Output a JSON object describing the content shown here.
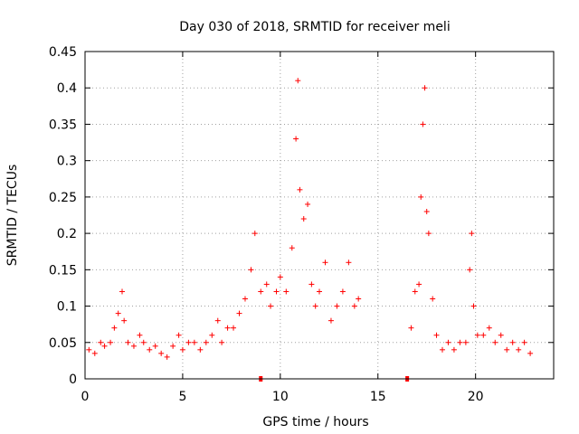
{
  "chart_data": {
    "type": "scatter",
    "title": "Day 030 of 2018, SRMTID for receiver meli",
    "xlabel": "GPS time / hours",
    "ylabel": "SRMTID / TECUs",
    "xlim": [
      0,
      24
    ],
    "ylim": [
      0,
      0.45
    ],
    "xticks": [
      0,
      5,
      10,
      15,
      20
    ],
    "xtick_labels": [
      "0",
      "5",
      "10",
      "15",
      "20"
    ],
    "yticks": [
      0,
      0.05,
      0.1,
      0.15,
      0.2,
      0.25,
      0.3,
      0.35,
      0.4,
      0.45
    ],
    "ytick_labels": [
      "0",
      "0.05",
      "0.1",
      "0.15",
      "0.2",
      "0.25",
      "0.3",
      "0.35",
      "0.4",
      "0.45"
    ],
    "grid": true,
    "marker": "+",
    "color": "#ff0000",
    "series": [
      {
        "x": [
          0.2,
          0.5,
          0.8,
          1.0,
          1.3,
          1.5,
          1.7,
          1.9,
          2.0,
          2.2,
          2.5,
          2.8,
          3.0,
          3.3,
          3.6,
          3.9,
          4.2,
          4.5,
          4.8,
          5.0,
          5.3,
          5.6,
          5.9,
          6.2,
          6.5,
          6.8,
          7.0,
          7.3,
          7.6,
          7.9,
          8.2,
          8.5,
          8.7,
          9.0,
          9.3,
          9.5,
          9.8,
          10.0,
          10.3,
          10.6,
          10.8,
          10.9,
          11.0,
          11.2,
          11.4,
          11.6,
          11.8,
          12.0,
          12.3,
          12.6,
          12.9,
          13.2,
          13.5,
          13.8,
          14.0,
          16.7,
          16.9,
          17.1,
          17.2,
          17.3,
          17.4,
          17.5,
          17.6,
          17.8,
          18.0,
          18.3,
          18.6,
          18.9,
          19.2,
          19.5,
          19.7,
          19.8,
          19.9,
          20.1,
          20.4,
          20.7,
          21.0,
          21.3,
          21.6,
          21.9,
          22.2,
          22.5,
          22.8
        ],
        "y": [
          0.04,
          0.035,
          0.05,
          0.045,
          0.05,
          0.07,
          0.09,
          0.12,
          0.08,
          0.05,
          0.045,
          0.06,
          0.05,
          0.04,
          0.045,
          0.035,
          0.03,
          0.045,
          0.06,
          0.04,
          0.05,
          0.05,
          0.04,
          0.05,
          0.06,
          0.08,
          0.05,
          0.07,
          0.07,
          0.09,
          0.11,
          0.15,
          0.2,
          0.12,
          0.13,
          0.1,
          0.12,
          0.14,
          0.12,
          0.18,
          0.33,
          0.41,
          0.26,
          0.22,
          0.24,
          0.13,
          0.1,
          0.12,
          0.16,
          0.08,
          0.1,
          0.12,
          0.16,
          0.1,
          0.11,
          0.07,
          0.12,
          0.13,
          0.25,
          0.35,
          0.4,
          0.23,
          0.2,
          0.11,
          0.06,
          0.04,
          0.05,
          0.04,
          0.05,
          0.05,
          0.15,
          0.2,
          0.1,
          0.06,
          0.06,
          0.07,
          0.05,
          0.06,
          0.04,
          0.05,
          0.04,
          0.05,
          0.035
        ]
      }
    ],
    "zero_markers": [
      9.0,
      16.5
    ]
  }
}
